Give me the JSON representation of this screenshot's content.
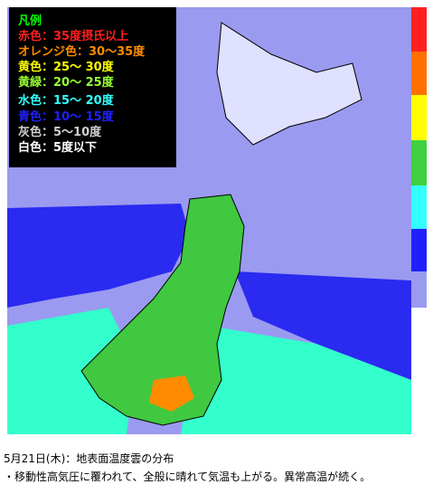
{
  "legend": {
    "title": "凡例",
    "items": [
      {
        "text": "赤色：35度摂氏以上",
        "color": "#ff2020"
      },
      {
        "text": "オレンジ色：30～35度",
        "color": "#ff8c00"
      },
      {
        "text": "黄色：25～ 30度",
        "color": "#ffff00"
      },
      {
        "text": "黄緑：20～ 25度",
        "color": "#9aff32"
      },
      {
        "text": "水色：15～ 20度",
        "color": "#33ffff"
      },
      {
        "text": "青色：10～ 15度",
        "color": "#2020ff"
      },
      {
        "text": "灰色：5～10度",
        "color": "#d0d0d0"
      },
      {
        "text": "白色：5度以下",
        "color": "#ffffff"
      }
    ]
  },
  "caption": {
    "date": "5月21日(木)：地表面温度雲の分布",
    "note": "・移動性高気圧に覆われて、全般に晴れて気温も上がる。異常高温が続く。"
  }
}
